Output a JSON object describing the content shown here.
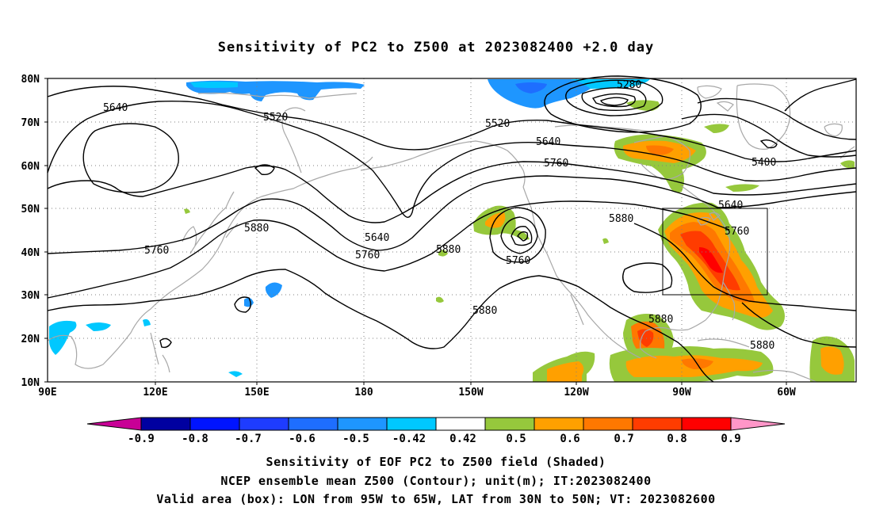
{
  "title": "Sensitivity of PC2 to Z500 at 2023082400 +2.0 day",
  "map": {
    "lat_labels": [
      "80N",
      "70N",
      "60N",
      "50N",
      "40N",
      "30N",
      "20N",
      "10N"
    ],
    "lon_labels": [
      "90E",
      "120E",
      "150E",
      "180",
      "150W",
      "120W",
      "90W",
      "60W"
    ],
    "contour_labels": [
      {
        "text": "5640",
        "name": "contour-label-5640-a"
      },
      {
        "text": "5520",
        "name": "contour-label-5520-a"
      },
      {
        "text": "5520",
        "name": "contour-label-5520-b"
      },
      {
        "text": "5280",
        "name": "contour-label-5280"
      },
      {
        "text": "5640",
        "name": "contour-label-5640-b"
      },
      {
        "text": "5760",
        "name": "contour-label-5760-a"
      },
      {
        "text": "5400",
        "name": "contour-label-5400"
      },
      {
        "text": "5640",
        "name": "contour-label-5640-c"
      },
      {
        "text": "5760",
        "name": "contour-label-5760-b"
      },
      {
        "text": "5880",
        "name": "contour-label-5880-a"
      },
      {
        "text": "5880",
        "name": "contour-label-5880-b"
      },
      {
        "text": "5640",
        "name": "contour-label-5640-d"
      },
      {
        "text": "5760",
        "name": "contour-label-5760-c"
      },
      {
        "text": "5880",
        "name": "contour-label-5880-c"
      },
      {
        "text": "5760",
        "name": "contour-label-5760-d"
      },
      {
        "text": "5880",
        "name": "contour-label-5880-d"
      },
      {
        "text": "5880",
        "name": "contour-label-5880-e"
      },
      {
        "text": "5880",
        "name": "contour-label-5880-f"
      },
      {
        "text": "5760",
        "name": "contour-label-5760-e"
      }
    ],
    "valid_box": {
      "lon_range": [
        "95W",
        "65W"
      ],
      "lat_range": [
        "30N",
        "50N"
      ]
    }
  },
  "colorbar": {
    "labels": [
      "-0.9",
      "-0.8",
      "-0.7",
      "-0.6",
      "-0.5",
      "-0.42",
      "0.42",
      "0.5",
      "0.6",
      "0.7",
      "0.8",
      "0.9"
    ],
    "colors": [
      "#0000a0",
      "#0014ff",
      "#1e3cff",
      "#1e6eff",
      "#1e96ff",
      "#00c8ff",
      "#ffffff",
      "#96c83c",
      "#ffa000",
      "#ff7800",
      "#ff3c00",
      "#ff0000"
    ],
    "under_color": "#c80096",
    "over_color": "#ff96c8"
  },
  "caption": {
    "line1": "Sensitivity of EOF PC2 to Z500 field (Shaded)",
    "line2": "NCEP ensemble mean Z500 (Contour); unit(m); IT:2023082400",
    "line3": "Valid area (box): LON from 95W to 65W, LAT from 30N to 50N; VT: 2023082600"
  }
}
